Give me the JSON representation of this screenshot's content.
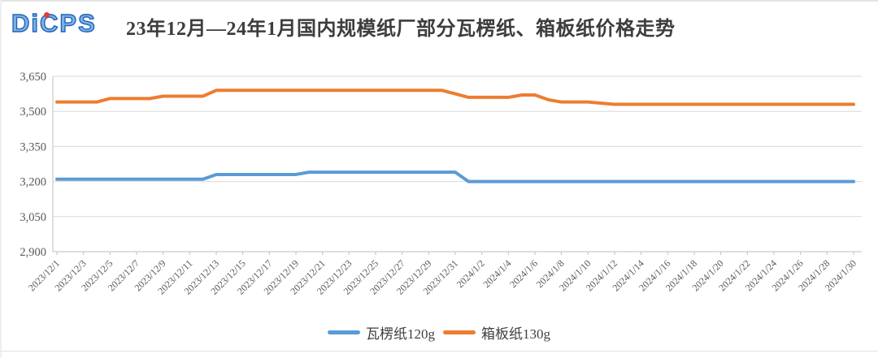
{
  "logo": {
    "text": "DiCPS",
    "color": "#1e63b8",
    "dot_color": "#e23c39"
  },
  "header": {
    "title": "23年12月—24年1月国内规模纸厂部分瓦楞纸、箱板纸价格走势"
  },
  "chart_data": {
    "type": "line",
    "x": [
      "2023/12/1",
      "2023/12/2",
      "2023/12/3",
      "2023/12/4",
      "2023/12/5",
      "2023/12/6",
      "2023/12/7",
      "2023/12/8",
      "2023/12/9",
      "2023/12/10",
      "2023/12/11",
      "2023/12/12",
      "2023/12/13",
      "2023/12/14",
      "2023/12/15",
      "2023/12/16",
      "2023/12/17",
      "2023/12/18",
      "2023/12/19",
      "2023/12/20",
      "2023/12/21",
      "2023/12/22",
      "2023/12/23",
      "2023/12/24",
      "2023/12/25",
      "2023/12/26",
      "2023/12/27",
      "2023/12/28",
      "2023/12/29",
      "2023/12/30",
      "2023/12/31",
      "2024/1/1",
      "2024/1/2",
      "2024/1/3",
      "2024/1/4",
      "2024/1/5",
      "2024/1/6",
      "2024/1/7",
      "2024/1/8",
      "2024/1/9",
      "2024/1/10",
      "2024/1/11",
      "2024/1/12",
      "2024/1/13",
      "2024/1/14",
      "2024/1/15",
      "2024/1/16",
      "2024/1/17",
      "2024/1/18",
      "2024/1/19",
      "2024/1/20",
      "2024/1/21",
      "2024/1/22",
      "2024/1/23",
      "2024/1/24",
      "2024/1/25",
      "2024/1/26",
      "2024/1/27",
      "2024/1/28",
      "2024/1/29",
      "2024/1/30"
    ],
    "series": [
      {
        "name": "瓦楞纸120g",
        "color": "#5B9BD5",
        "values": [
          3210,
          3210,
          3210,
          3210,
          3210,
          3210,
          3210,
          3210,
          3210,
          3210,
          3210,
          3210,
          3230,
          3230,
          3230,
          3230,
          3230,
          3230,
          3230,
          3240,
          3240,
          3240,
          3240,
          3240,
          3240,
          3240,
          3240,
          3240,
          3240,
          3240,
          3240,
          3200,
          3200,
          3200,
          3200,
          3200,
          3200,
          3200,
          3200,
          3200,
          3200,
          3200,
          3200,
          3200,
          3200,
          3200,
          3200,
          3200,
          3200,
          3200,
          3200,
          3200,
          3200,
          3200,
          3200,
          3200,
          3200,
          3200,
          3200,
          3200,
          3200
        ]
      },
      {
        "name": "箱板纸130g",
        "color": "#ED7D31",
        "values": [
          3540,
          3540,
          3540,
          3540,
          3555,
          3555,
          3555,
          3555,
          3565,
          3565,
          3565,
          3565,
          3590,
          3590,
          3590,
          3590,
          3590,
          3590,
          3590,
          3590,
          3590,
          3590,
          3590,
          3590,
          3590,
          3590,
          3590,
          3590,
          3590,
          3590,
          3575,
          3560,
          3560,
          3560,
          3560,
          3570,
          3570,
          3550,
          3540,
          3540,
          3540,
          3535,
          3530,
          3530,
          3530,
          3530,
          3530,
          3530,
          3530,
          3530,
          3530,
          3530,
          3530,
          3530,
          3530,
          3530,
          3530,
          3530,
          3530,
          3530,
          3530
        ]
      }
    ],
    "ylim": [
      2900,
      3650
    ],
    "yticks": [
      2900,
      3050,
      3200,
      3350,
      3500,
      3650
    ],
    "ytick_labels": [
      "2,900",
      "3,050",
      "3,200",
      "3,350",
      "3,500",
      "3,650"
    ],
    "x_label_every": 2,
    "x_tick_label_rotation": -45,
    "grid": true,
    "legend_position": "bottom",
    "gridline_color": "#d9d9d9",
    "axis_color": "#bfbfbf",
    "label_color": "#595959"
  }
}
